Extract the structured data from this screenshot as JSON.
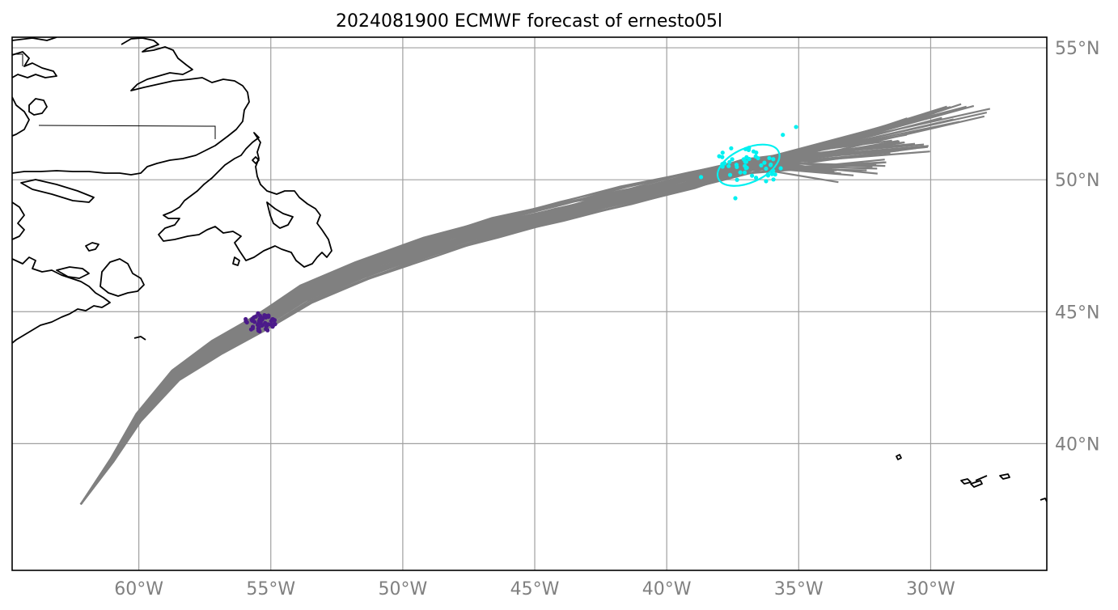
{
  "title": "2024081900 ECMWF forecast of ernesto05l",
  "axes": {
    "x_ticks": [
      {
        "value": -60,
        "label": "60°W"
      },
      {
        "value": -55,
        "label": "55°W"
      },
      {
        "value": -50,
        "label": "50°W"
      },
      {
        "value": -45,
        "label": "45°W"
      },
      {
        "value": -40,
        "label": "40°W"
      },
      {
        "value": -35,
        "label": "35°W"
      },
      {
        "value": -30,
        "label": "30°W"
      }
    ],
    "y_ticks": [
      {
        "value": 40,
        "label": "40°N"
      },
      {
        "value": 45,
        "label": "45°N"
      },
      {
        "value": 50,
        "label": "50°N"
      },
      {
        "value": 55,
        "label": "55°N"
      }
    ],
    "lon_range": [
      -64.8,
      -25.6
    ],
    "lat_range": [
      35.2,
      55.4
    ],
    "tick_label_color": "#808080",
    "grid_color": "#a0a0a0"
  },
  "chart_data": {
    "type": "map-tracks",
    "track_color": "#808080",
    "start_point": [
      -62.2,
      37.7
    ],
    "track_count": 50,
    "cluster_1": {
      "color": "#4b1a8a",
      "center": [
        -55.4,
        44.6
      ],
      "spread_lon": 0.6,
      "spread_lat": 0.35,
      "count": 50
    },
    "cluster_2": {
      "color": "#00f0f0",
      "center": [
        -36.9,
        50.55
      ],
      "count": 50,
      "ellipse": {
        "cx": -36.9,
        "cy": 50.55,
        "rx": 1.25,
        "ry": 0.65,
        "rot": -24
      }
    },
    "track_endpoints": [
      [
        -28.9,
        52.9
      ],
      [
        -28.1,
        52.6
      ],
      [
        -29.3,
        52.2
      ],
      [
        -29.5,
        52.7
      ],
      [
        -30.6,
        52.3
      ],
      [
        -31.0,
        51.6
      ],
      [
        -31.3,
        51.3
      ],
      [
        -30.3,
        51.2
      ],
      [
        -31.6,
        51.0
      ],
      [
        -30.5,
        51.3
      ],
      [
        -31.9,
        50.7
      ],
      [
        -32.0,
        50.6
      ],
      [
        -32.4,
        50.3
      ],
      [
        -33.1,
        50.1
      ],
      [
        -34.0,
        51.0
      ],
      [
        -33.5,
        50.2
      ]
    ]
  },
  "map_features": {
    "coastline_color": "#000000",
    "border_color": "#000000"
  }
}
